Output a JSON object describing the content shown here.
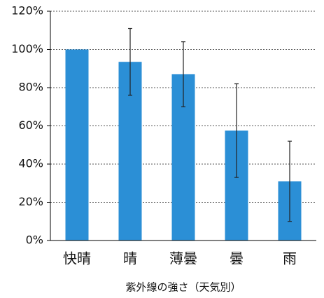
{
  "chart_data": {
    "type": "bar",
    "x_label": "紫外線の強さ（天気別）",
    "categories": [
      "快晴",
      "晴",
      "薄曇",
      "曇",
      "雨"
    ],
    "values": [
      100,
      93.5,
      87,
      57.5,
      31
    ],
    "errors": [
      null,
      17.5,
      17,
      24.5,
      21
    ],
    "color": "#2b8fd6",
    "ylim": [
      0,
      120
    ],
    "yticks": [
      {
        "value": 0,
        "label": "0%"
      },
      {
        "value": 20,
        "label": "20%"
      },
      {
        "value": 40,
        "label": "40%"
      },
      {
        "value": 60,
        "label": "60%"
      },
      {
        "value": 80,
        "label": "80%"
      },
      {
        "value": 100,
        "label": "100%"
      },
      {
        "value": 120,
        "label": "120%"
      }
    ],
    "grid": true
  }
}
